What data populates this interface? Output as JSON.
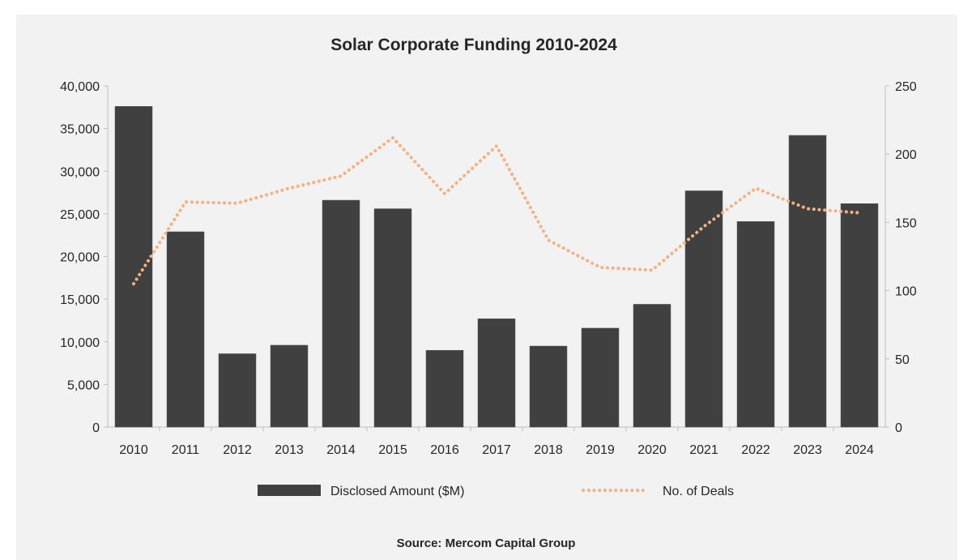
{
  "chart_data": {
    "type": "bar+line",
    "title": "Solar Corporate Funding 2010-2024",
    "source": "Source: Mercom Capital Group",
    "categories": [
      "2010",
      "2011",
      "2012",
      "2013",
      "2014",
      "2015",
      "2016",
      "2017",
      "2018",
      "2019",
      "2020",
      "2021",
      "2022",
      "2023",
      "2024"
    ],
    "series": [
      {
        "name": "Disclosed Amount ($M)",
        "type": "bar",
        "axis": "left",
        "color": "#404040",
        "values": [
          37600,
          22900,
          8600,
          9600,
          26600,
          25600,
          9000,
          12700,
          9500,
          11600,
          14400,
          27700,
          24100,
          34200,
          26200
        ]
      },
      {
        "name": "No. of Deals",
        "type": "line",
        "style": "dotted",
        "axis": "right",
        "color": "#f4b183",
        "values": [
          105,
          165,
          164,
          175,
          184,
          212,
          171,
          206,
          137,
          117,
          115,
          147,
          175,
          160,
          157
        ]
      }
    ],
    "y_left": {
      "ylim": [
        0,
        40000
      ],
      "ticks": [
        "0",
        "5,000",
        "10,000",
        "15,000",
        "20,000",
        "25,000",
        "30,000",
        "35,000",
        "40,000"
      ]
    },
    "y_right": {
      "ylim": [
        0,
        250
      ],
      "ticks": [
        "0",
        "50",
        "100",
        "150",
        "200",
        "250"
      ]
    },
    "grid": false,
    "legend": "bottom"
  }
}
